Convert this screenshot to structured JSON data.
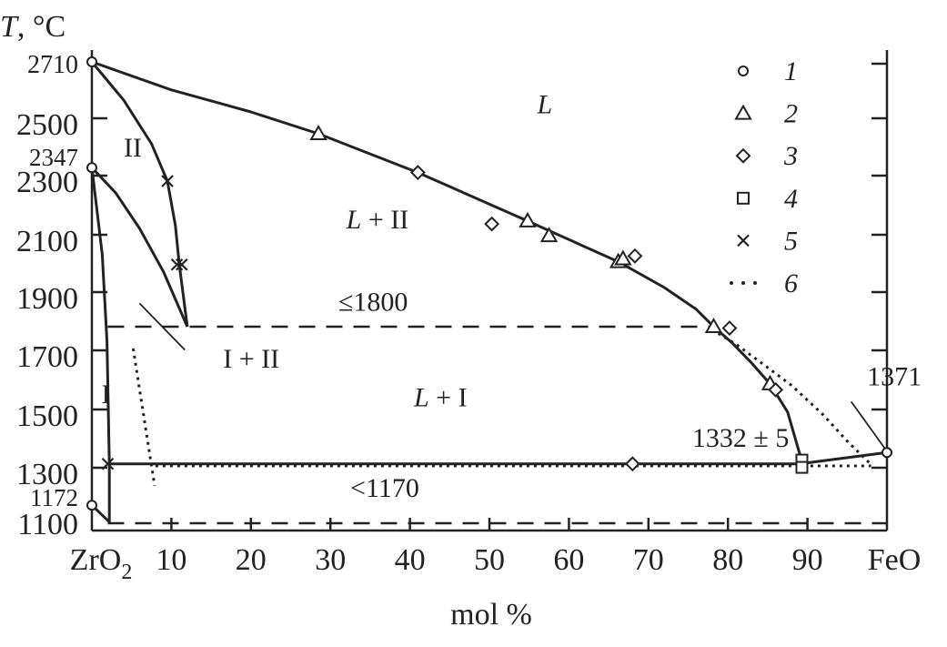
{
  "chart_data": {
    "type": "scatter",
    "title": "",
    "xlabel": "mol %",
    "ylabel_symbol": "T",
    "ylabel_unit": ", °C",
    "xlim": [
      0,
      100
    ],
    "ylim": [
      1100,
      2710
    ],
    "x_tick_labels": [
      {
        "x": 0,
        "label": "ZrO",
        "sub": "2"
      },
      {
        "x": 10,
        "label": "10"
      },
      {
        "x": 20,
        "label": "20"
      },
      {
        "x": 30,
        "label": "30"
      },
      {
        "x": 40,
        "label": "40"
      },
      {
        "x": 50,
        "label": "50"
      },
      {
        "x": 60,
        "label": "60"
      },
      {
        "x": 70,
        "label": "70"
      },
      {
        "x": 80,
        "label": "80"
      },
      {
        "x": 90,
        "label": "90"
      },
      {
        "x": 100,
        "label": "FeO"
      }
    ],
    "y_tick_labels": [
      {
        "y": 2710,
        "label": "2710",
        "small": true
      },
      {
        "y": 2500,
        "label": "2500"
      },
      {
        "y": 2347,
        "label": "2347",
        "small": true
      },
      {
        "y": 2300,
        "label": "2300"
      },
      {
        "y": 2100,
        "label": "2100"
      },
      {
        "y": 1900,
        "label": "1900"
      },
      {
        "y": 1700,
        "label": "1700"
      },
      {
        "y": 1500,
        "label": "1500"
      },
      {
        "y": 1300,
        "label": "1300"
      },
      {
        "y": 1172,
        "label": "1172",
        "small": true
      },
      {
        "y": 1100,
        "label": "1100"
      }
    ],
    "grid": false,
    "legend_placement": "top-right",
    "legend": [
      {
        "marker": "circle",
        "label": "1"
      },
      {
        "marker": "triangle",
        "label": "2"
      },
      {
        "marker": "diamond",
        "label": "3"
      },
      {
        "marker": "square",
        "label": "4"
      },
      {
        "marker": "cross",
        "label": "5"
      },
      {
        "marker": "dots",
        "label": "6"
      }
    ],
    "series": [
      {
        "marker": "circle",
        "points": [
          [
            0,
            2710
          ],
          [
            0,
            2347
          ],
          [
            0,
            1172
          ],
          [
            100,
            1371
          ]
        ]
      },
      {
        "marker": "triangle",
        "points": [
          [
            28.5,
            2465
          ],
          [
            54.8,
            2165
          ],
          [
            57.5,
            2115
          ],
          [
            66.2,
            2025
          ],
          [
            66.8,
            2035
          ],
          [
            78.2,
            1800
          ],
          [
            85.3,
            1605
          ]
        ]
      },
      {
        "marker": "diamond",
        "points": [
          [
            41,
            2330
          ],
          [
            50.3,
            2155
          ],
          [
            68.3,
            2045
          ],
          [
            80.2,
            1795
          ],
          [
            86,
            1585
          ],
          [
            68,
            1332
          ]
        ]
      },
      {
        "marker": "square",
        "points": [
          [
            89.3,
            1345
          ],
          [
            89.3,
            1320
          ]
        ]
      },
      {
        "marker": "cross",
        "points": [
          [
            9.5,
            2300
          ],
          [
            10.7,
            2015
          ],
          [
            11.3,
            2015
          ],
          [
            2,
            1332
          ]
        ]
      }
    ],
    "lines": [
      {
        "style": "solid",
        "points": [
          [
            0,
            2710
          ],
          [
            10,
            2615
          ],
          [
            20,
            2540
          ],
          [
            28.5,
            2465
          ],
          [
            41,
            2330
          ],
          [
            54.8,
            2165
          ],
          [
            66.2,
            2025
          ],
          [
            72,
            1935
          ],
          [
            76,
            1860
          ],
          [
            78.2,
            1800
          ],
          [
            80.5,
            1745
          ],
          [
            83,
            1675
          ],
          [
            85.3,
            1605
          ],
          [
            87.5,
            1510
          ],
          [
            89.3,
            1340
          ]
        ]
      },
      {
        "style": "solid",
        "points": [
          [
            89.3,
            1333
          ],
          [
            100,
            1371
          ]
        ]
      },
      {
        "style": "solid",
        "points": [
          [
            0,
            2710
          ],
          [
            4,
            2580
          ],
          [
            7.5,
            2430
          ],
          [
            9.5,
            2300
          ],
          [
            10.5,
            2150
          ],
          [
            11,
            2015
          ],
          [
            12,
            1800
          ]
        ]
      },
      {
        "style": "solid",
        "points": [
          [
            0,
            2347
          ],
          [
            3,
            2260
          ],
          [
            6,
            2140
          ],
          [
            9,
            1990
          ],
          [
            12,
            1800
          ]
        ]
      },
      {
        "style": "solid",
        "points": [
          [
            0,
            2347
          ],
          [
            1.3,
            2050
          ],
          [
            1.9,
            1750
          ],
          [
            2.2,
            1332
          ],
          [
            2.2,
            1100
          ]
        ]
      },
      {
        "style": "solid",
        "points": [
          [
            0,
            1172
          ],
          [
            2.2,
            1105
          ]
        ]
      },
      {
        "style": "solid",
        "points": [
          [
            2,
            1332
          ],
          [
            89.3,
            1332
          ]
        ]
      },
      {
        "style": "dotted",
        "points": [
          [
            8,
            1325
          ],
          [
            98,
            1325
          ]
        ]
      },
      {
        "style": "dotted",
        "points": [
          [
            5.2,
            1725
          ],
          [
            7.9,
            1250
          ]
        ]
      },
      {
        "style": "dotted",
        "points": [
          [
            78,
            1790
          ],
          [
            81,
            1740
          ],
          [
            84,
            1680
          ],
          [
            88,
            1600
          ],
          [
            92,
            1500
          ],
          [
            95,
            1410
          ],
          [
            98,
            1330
          ]
        ]
      },
      {
        "style": "dashed",
        "points": [
          [
            2,
            1800
          ],
          [
            78,
            1800
          ]
        ]
      },
      {
        "style": "dashed",
        "points": [
          [
            2,
            1100
          ],
          [
            100,
            1100
          ]
        ]
      },
      {
        "style": "thin",
        "points": [
          [
            6,
            1880
          ],
          [
            11.7,
            1720
          ]
        ]
      },
      {
        "style": "thin",
        "points": [
          [
            95.5,
            1545
          ],
          [
            100,
            1375
          ]
        ]
      }
    ],
    "annotations": [
      {
        "text": "L",
        "italic": true,
        "x": 56,
        "y": 2535
      },
      {
        "text": "L",
        "italic": true,
        "suffix": " + II",
        "x": 32,
        "y": 2140
      },
      {
        "text": "II",
        "x": 4,
        "y": 2385
      },
      {
        "text": "I + II",
        "x": 16.5,
        "y": 1660
      },
      {
        "text": "L",
        "italic": true,
        "suffix": " + I",
        "x": 40.5,
        "y": 1530
      },
      {
        "text": "I",
        "x": 1.2,
        "y": 1540
      },
      {
        "text": "≤1800",
        "x": 31,
        "y": 1855
      },
      {
        "text": "<1170",
        "x": 32.5,
        "y": 1205
      },
      {
        "text": "1332 ± 5",
        "x": 75.5,
        "y": 1390
      },
      {
        "text": "1371",
        "x": 97.5,
        "y": 1600
      }
    ]
  }
}
